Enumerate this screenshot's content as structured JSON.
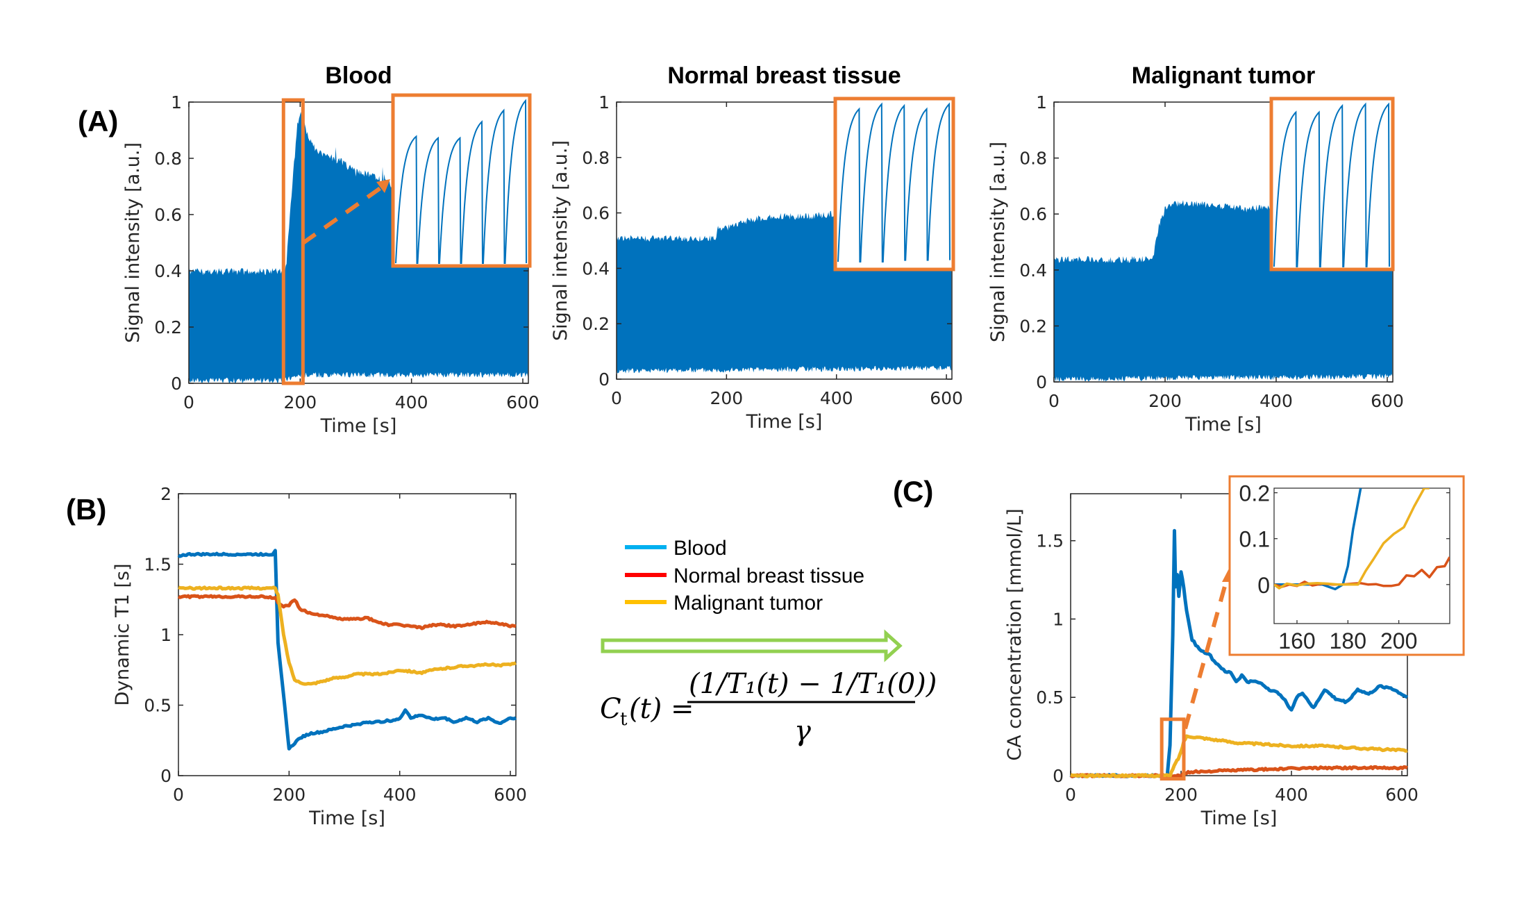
{
  "colors": {
    "signal_blue": "#0072bd",
    "blood": "#0072bd",
    "normal": "#d95319",
    "tumor": "#edb120",
    "legend_blood": "#00b0f0",
    "legend_normal": "#ff0000",
    "legend_tumor": "#ffc000",
    "highlight_box": "#ed7d31",
    "arrow_green": "#92d050",
    "axis": "#262626"
  },
  "panel_labels": {
    "a": "(A)",
    "b": "(B)",
    "c": "(C)"
  },
  "legend": {
    "items": [
      {
        "label": "Blood",
        "color_key": "legend_blood"
      },
      {
        "label": "Normal breast tissue",
        "color_key": "legend_normal"
      },
      {
        "label": "Malignant tumor",
        "color_key": "legend_tumor"
      }
    ]
  },
  "formula": {
    "lhs_C": "C",
    "lhs_sub": "t",
    "lhs_args": "(t) =",
    "numerator": "(1/T₁(t) − 1/T₁(0))",
    "denominator": "γ"
  },
  "chart_data": [
    {
      "id": "signal-blood",
      "type": "area",
      "title": "Blood",
      "xlabel": "Time [s]",
      "ylabel": "Signal intensity [a.u.]",
      "xlim": [
        0,
        610
      ],
      "ylim": [
        0,
        1
      ],
      "xticks": [
        0,
        200,
        400,
        600
      ],
      "yticks": [
        0,
        0.2,
        0.4,
        0.6,
        0.8,
        1
      ],
      "ytick_labels": [
        "0",
        "0.2",
        "0.4",
        "0.6",
        "0.8",
        "1"
      ],
      "envelope_upper": {
        "t": [
          0,
          170,
          175,
          185,
          195,
          200,
          205,
          215,
          230,
          250,
          275,
          300,
          330,
          360,
          400,
          450,
          500,
          550,
          610
        ],
        "v": [
          0.41,
          0.41,
          0.43,
          0.7,
          0.93,
          0.97,
          0.95,
          0.88,
          0.84,
          0.82,
          0.8,
          0.77,
          0.75,
          0.72,
          0.7,
          0.68,
          0.66,
          0.64,
          0.63
        ]
      },
      "envelope_lower": {
        "t": [
          0,
          170,
          200,
          610
        ],
        "v": [
          0.0,
          0.0,
          0.02,
          0.02
        ]
      },
      "zoom_box_x": [
        170,
        205
      ],
      "inset": {
        "peaks": [
          0.78,
          0.77,
          0.77,
          0.87,
          0.94,
          1.0
        ],
        "troughs": [
          0.0,
          0.0,
          0.0,
          0.0,
          0.0,
          0.0
        ]
      }
    },
    {
      "id": "signal-normal",
      "type": "area",
      "title": "Normal breast tissue",
      "xlabel": "Time [s]",
      "ylabel": "Signal intensity [a.u.]",
      "xlim": [
        0,
        610
      ],
      "ylim": [
        0,
        1
      ],
      "xticks": [
        0,
        200,
        400,
        600
      ],
      "yticks": [
        0,
        0.2,
        0.4,
        0.6,
        0.8,
        1
      ],
      "ytick_labels": [
        "0",
        "0.2",
        "0.4",
        "0.6",
        "0.8",
        "1"
      ],
      "envelope_upper": {
        "t": [
          0,
          180,
          185,
          200,
          250,
          300,
          350,
          400,
          610
        ],
        "v": [
          0.52,
          0.52,
          0.56,
          0.56,
          0.59,
          0.6,
          0.6,
          0.61,
          0.61
        ]
      },
      "envelope_lower": {
        "t": [
          0,
          610
        ],
        "v": [
          0.02,
          0.03
        ]
      },
      "inset": {
        "peaks": [
          0.97,
          1.0,
          0.99,
          0.97,
          1.0
        ],
        "troughs": [
          0.03,
          0.03,
          0.03,
          0.04,
          0.04
        ]
      }
    },
    {
      "id": "signal-tumor",
      "type": "area",
      "title": "Malignant tumor",
      "xlabel": "Time [s]",
      "ylabel": "Signal intensity [a.u.]",
      "xlim": [
        0,
        610
      ],
      "ylim": [
        0,
        1
      ],
      "xticks": [
        0,
        200,
        400,
        600
      ],
      "yticks": [
        0,
        0.2,
        0.4,
        0.6,
        0.8,
        1
      ],
      "ytick_labels": [
        "0",
        "0.2",
        "0.4",
        "0.6",
        "0.8",
        "1"
      ],
      "envelope_upper": {
        "t": [
          0,
          178,
          182,
          190,
          200,
          220,
          260,
          300,
          350,
          400,
          610
        ],
        "v": [
          0.45,
          0.45,
          0.5,
          0.58,
          0.63,
          0.65,
          0.65,
          0.64,
          0.63,
          0.64,
          0.64
        ]
      },
      "envelope_lower": {
        "t": [
          0,
          610
        ],
        "v": [
          0.0,
          0.01
        ]
      },
      "inset": {
        "peaks": [
          0.95,
          0.95,
          0.99,
          1.0,
          1.0
        ],
        "troughs": [
          0.0,
          0.0,
          0.0,
          0.0,
          0.0
        ]
      }
    },
    {
      "id": "dynamic-t1",
      "type": "line",
      "title": "",
      "xlabel": "Time [s]",
      "ylabel": "Dynamic T1 [s]",
      "xlim": [
        0,
        610
      ],
      "ylim": [
        0,
        2
      ],
      "xticks": [
        0,
        200,
        400,
        600
      ],
      "yticks": [
        0,
        0.5,
        1,
        1.5,
        2
      ],
      "ytick_labels": [
        "0",
        "0.5",
        "1",
        "1.5",
        "2"
      ],
      "series": [
        {
          "name": "Blood",
          "color_key": "blood",
          "t": [
            0,
            20,
            60,
            100,
            140,
            170,
            175,
            180,
            200,
            210,
            220,
            240,
            260,
            280,
            300,
            320,
            340,
            360,
            380,
            400,
            410,
            420,
            440,
            460,
            480,
            500,
            520,
            540,
            560,
            580,
            600,
            610
          ],
          "v": [
            1.56,
            1.57,
            1.57,
            1.57,
            1.57,
            1.57,
            1.6,
            0.95,
            0.19,
            0.23,
            0.27,
            0.3,
            0.31,
            0.33,
            0.35,
            0.36,
            0.38,
            0.38,
            0.39,
            0.4,
            0.47,
            0.41,
            0.43,
            0.4,
            0.41,
            0.38,
            0.41,
            0.38,
            0.41,
            0.37,
            0.41,
            0.41
          ]
        },
        {
          "name": "Normal breast tissue",
          "color_key": "normal",
          "t": [
            0,
            50,
            100,
            150,
            175,
            180,
            190,
            200,
            210,
            220,
            240,
            260,
            280,
            300,
            320,
            340,
            360,
            380,
            400,
            420,
            440,
            460,
            480,
            500,
            520,
            540,
            560,
            580,
            600,
            610
          ],
          "v": [
            1.27,
            1.27,
            1.27,
            1.27,
            1.26,
            1.23,
            1.2,
            1.21,
            1.25,
            1.18,
            1.15,
            1.14,
            1.12,
            1.11,
            1.11,
            1.12,
            1.09,
            1.07,
            1.07,
            1.06,
            1.05,
            1.07,
            1.07,
            1.06,
            1.07,
            1.08,
            1.09,
            1.08,
            1.06,
            1.06
          ]
        },
        {
          "name": "Malignant tumor",
          "color_key": "tumor",
          "t": [
            0,
            50,
            100,
            150,
            175,
            180,
            190,
            200,
            210,
            220,
            240,
            260,
            280,
            300,
            320,
            340,
            360,
            380,
            400,
            420,
            440,
            460,
            480,
            500,
            520,
            540,
            560,
            580,
            600,
            610
          ],
          "v": [
            1.33,
            1.33,
            1.33,
            1.33,
            1.33,
            1.28,
            1.0,
            0.8,
            0.68,
            0.66,
            0.65,
            0.67,
            0.69,
            0.7,
            0.72,
            0.72,
            0.72,
            0.73,
            0.75,
            0.74,
            0.73,
            0.75,
            0.76,
            0.77,
            0.78,
            0.78,
            0.79,
            0.78,
            0.79,
            0.8
          ]
        }
      ]
    },
    {
      "id": "ca-concentration",
      "type": "line",
      "title": "",
      "xlabel": "Time [s]",
      "ylabel": "CA concentration [mmol/L]",
      "xlim": [
        0,
        610
      ],
      "ylim": [
        0,
        1.8
      ],
      "xticks": [
        0,
        200,
        400,
        600
      ],
      "yticks": [
        0,
        0.5,
        1,
        1.5
      ],
      "ytick_labels": [
        "0",
        "0.5",
        "1",
        "1.5"
      ],
      "zoom_box": {
        "x": [
          165,
          205
        ],
        "y": [
          -0.02,
          0.36
        ]
      },
      "series": [
        {
          "name": "Blood",
          "color_key": "blood",
          "t": [
            0,
            100,
            175,
            180,
            185,
            188,
            190,
            193,
            196,
            200,
            205,
            210,
            220,
            230,
            240,
            250,
            260,
            270,
            280,
            290,
            300,
            310,
            320,
            340,
            360,
            380,
            400,
            410,
            420,
            440,
            460,
            480,
            500,
            520,
            540,
            560,
            580,
            600,
            610
          ],
          "v": [
            0,
            0,
            0,
            0.2,
            0.9,
            1.56,
            1.2,
            1.28,
            1.15,
            1.3,
            1.2,
            1.05,
            0.87,
            0.82,
            0.79,
            0.78,
            0.73,
            0.7,
            0.66,
            0.66,
            0.6,
            0.64,
            0.6,
            0.6,
            0.55,
            0.52,
            0.42,
            0.5,
            0.53,
            0.43,
            0.55,
            0.49,
            0.47,
            0.55,
            0.52,
            0.57,
            0.56,
            0.52,
            0.5
          ]
        },
        {
          "name": "Normal breast tissue",
          "color_key": "normal",
          "t": [
            0,
            100,
            180,
            200,
            210,
            230,
            260,
            300,
            350,
            400,
            450,
            500,
            550,
            610
          ],
          "v": [
            0,
            0,
            0,
            0.0,
            0.02,
            0.025,
            0.03,
            0.035,
            0.04,
            0.045,
            0.05,
            0.05,
            0.05,
            0.05
          ]
        },
        {
          "name": "Malignant tumor",
          "color_key": "tumor",
          "t": [
            0,
            100,
            180,
            185,
            190,
            195,
            200,
            205,
            210,
            220,
            240,
            260,
            300,
            350,
            400,
            450,
            500,
            550,
            610
          ],
          "v": [
            0,
            0,
            0,
            0.04,
            0.08,
            0.11,
            0.15,
            0.22,
            0.25,
            0.25,
            0.24,
            0.23,
            0.21,
            0.2,
            0.19,
            0.19,
            0.18,
            0.17,
            0.16
          ]
        }
      ],
      "inset": {
        "xlim": [
          151,
          220
        ],
        "ylim": [
          -0.085,
          0.21
        ],
        "xticks": [
          160,
          180,
          200
        ],
        "yticks": [
          0,
          0.1,
          0.2
        ],
        "ytick_labels": [
          "0",
          "0.1",
          "0.2"
        ],
        "series": [
          {
            "name": "Blood",
            "color_key": "blood",
            "t": [
              151,
              160,
              170,
              175,
              178,
              180,
              182,
              185
            ],
            "v": [
              0,
              0,
              0,
              -0.01,
              0,
              0.04,
              0.12,
              0.21
            ]
          },
          {
            "name": "Normal breast tissue",
            "color_key": "normal",
            "t": [
              151,
              154,
              157,
              160,
              163,
              166,
              170,
              174,
              178,
              182,
              185,
              188,
              191,
              194,
              197,
              200,
              203,
              206,
              209,
              212,
              215,
              218,
              220
            ],
            "v": [
              0,
              -0.005,
              0,
              -0.003,
              0.006,
              -0.002,
              0.002,
              0.0,
              0.0,
              0.002,
              0.003,
              0.0,
              0.001,
              -0.003,
              -0.003,
              0.0,
              0.02,
              0.018,
              0.032,
              0.016,
              0.038,
              0.04,
              0.06
            ]
          },
          {
            "name": "Malignant tumor",
            "color_key": "tumor",
            "t": [
              151,
              153,
              156,
              160,
              164,
              168,
              172,
              176,
              180,
              184,
              187,
              190,
              194,
              198,
              202,
              206,
              210,
              212
            ],
            "v": [
              0,
              -0.008,
              0.002,
              -0.002,
              0.002,
              0.003,
              0.002,
              0.0,
              0.0,
              0.0,
              0.03,
              0.055,
              0.09,
              0.11,
              0.125,
              0.17,
              0.21,
              0.21
            ]
          }
        ]
      }
    }
  ]
}
